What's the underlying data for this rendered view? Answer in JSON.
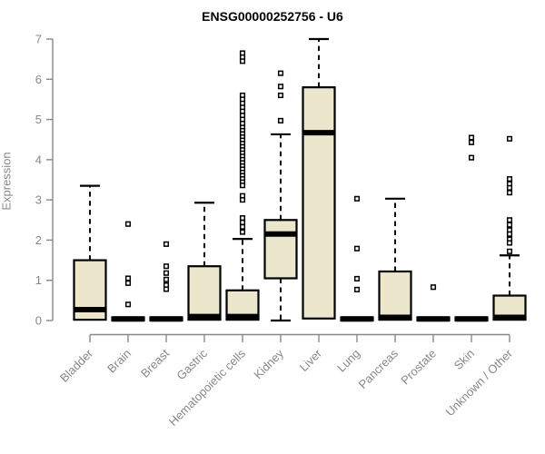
{
  "chart_data": {
    "type": "boxplot",
    "title": "ENSG00000252756 - U6",
    "ylabel": "Expression",
    "xlabel": "",
    "ylim": [
      0,
      7
    ],
    "yticks": [
      0,
      1,
      2,
      3,
      4,
      5,
      6,
      7
    ],
    "grid": false,
    "legend": false,
    "categories": [
      "Bladder",
      "Brain",
      "Breast",
      "Gastric",
      "Hematopoietic cells",
      "Kidney",
      "Liver",
      "Lung",
      "Pancreas",
      "Prostate",
      "Skin",
      "Unknown / Other"
    ],
    "boxes": [
      {
        "category": "Bladder",
        "whisker_low": 0.02,
        "q1": 0.02,
        "median": 0.27,
        "q3": 1.5,
        "whisker_high": 3.35,
        "outliers": []
      },
      {
        "category": "Brain",
        "whisker_low": 0,
        "q1": 0,
        "median": 0.04,
        "q3": 0.08,
        "whisker_high": 0.08,
        "outliers": [
          2.4,
          1.05,
          0.93,
          0.4
        ]
      },
      {
        "category": "Breast",
        "whisker_low": 0,
        "q1": 0,
        "median": 0.04,
        "q3": 0.08,
        "whisker_high": 0.08,
        "outliers": [
          1.9,
          1.35,
          1.18,
          1.02,
          0.88,
          0.78
        ]
      },
      {
        "category": "Gastric",
        "whisker_low": 0.02,
        "q1": 0.02,
        "median": 0.1,
        "q3": 1.35,
        "whisker_high": 2.93,
        "outliers": []
      },
      {
        "category": "Hematopoietic cells",
        "whisker_low": 0.02,
        "q1": 0.02,
        "median": 0.1,
        "q3": 0.75,
        "whisker_high": 2.03,
        "outliers": [
          6.65,
          6.55,
          6.45,
          5.6,
          5.5,
          5.4,
          5.3,
          5.2,
          5.1,
          5.0,
          4.9,
          4.8,
          4.72,
          4.64,
          4.56,
          4.48,
          4.4,
          4.32,
          4.24,
          4.16,
          4.08,
          4.0,
          3.92,
          3.84,
          3.76,
          3.68,
          3.6,
          3.52,
          3.44,
          3.36,
          3.1,
          3.0,
          2.55,
          2.44,
          2.33,
          2.2
        ]
      },
      {
        "category": "Kidney",
        "whisker_low": 0,
        "q1": 1.05,
        "median": 2.15,
        "q3": 2.5,
        "whisker_high": 4.63,
        "outliers": [
          6.15,
          5.82,
          5.6,
          4.97
        ]
      },
      {
        "category": "Liver",
        "whisker_low": 0.05,
        "q1": 0.05,
        "median": 4.67,
        "q3": 5.8,
        "whisker_high": 7.0,
        "outliers": []
      },
      {
        "category": "Lung",
        "whisker_low": 0,
        "q1": 0,
        "median": 0.04,
        "q3": 0.08,
        "whisker_high": 0.08,
        "outliers": [
          3.03,
          1.79,
          1.04,
          0.77
        ]
      },
      {
        "category": "Pancreas",
        "whisker_low": 0.02,
        "q1": 0.02,
        "median": 0.08,
        "q3": 1.22,
        "whisker_high": 3.03,
        "outliers": []
      },
      {
        "category": "Prostate",
        "whisker_low": 0,
        "q1": 0,
        "median": 0.04,
        "q3": 0.08,
        "whisker_high": 0.08,
        "outliers": [
          0.83
        ]
      },
      {
        "category": "Skin",
        "whisker_low": 0,
        "q1": 0,
        "median": 0.04,
        "q3": 0.08,
        "whisker_high": 0.08,
        "outliers": [
          4.55,
          4.43,
          4.05
        ]
      },
      {
        "category": "Unknown / Other",
        "whisker_low": 0.02,
        "q1": 0.02,
        "median": 0.08,
        "q3": 0.62,
        "whisker_high": 1.62,
        "outliers": [
          4.52,
          3.52,
          3.4,
          3.3,
          3.18,
          2.5,
          2.38,
          2.25,
          2.15,
          2.02,
          1.93,
          1.72
        ]
      }
    ],
    "colors": {
      "box_fill": "#ece6cd",
      "box_border": "#000000",
      "median": "#000000",
      "whisker": "#000000",
      "outlier": "#000000",
      "axis": "#888888",
      "tick_text": "#888888",
      "title_text": "#000000"
    }
  }
}
